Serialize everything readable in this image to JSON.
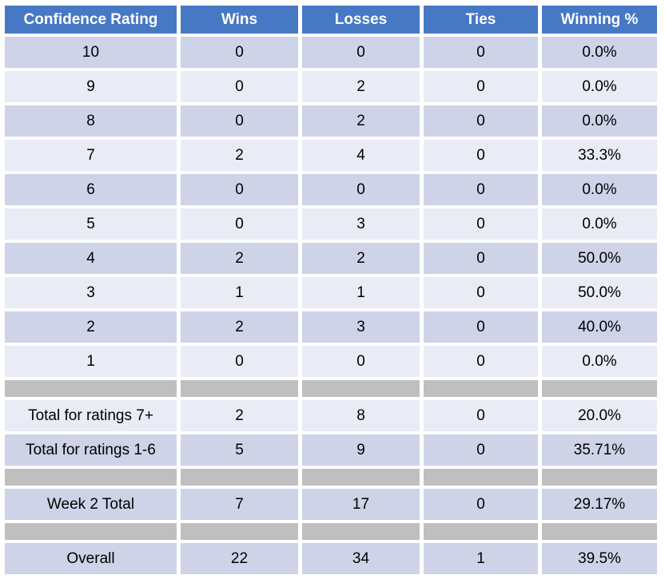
{
  "colors": {
    "header_bg": "#4778C4",
    "header_text": "#FFFFFF",
    "band_dark": "#CED3E8",
    "band_light": "#E9EBF5",
    "separator": "#BFBFBF",
    "body_text": "#000000",
    "page_bg": "#FFFFFF"
  },
  "chart_data": {
    "type": "table",
    "columns": [
      "Confidence Rating",
      "Wins",
      "Losses",
      "Ties",
      "Winning %"
    ],
    "rows": [
      {
        "band": "dark",
        "cells": [
          "10",
          "0",
          "0",
          "0",
          "0.0%"
        ]
      },
      {
        "band": "light",
        "cells": [
          "9",
          "0",
          "2",
          "0",
          "0.0%"
        ]
      },
      {
        "band": "dark",
        "cells": [
          "8",
          "0",
          "2",
          "0",
          "0.0%"
        ]
      },
      {
        "band": "light",
        "cells": [
          "7",
          "2",
          "4",
          "0",
          "33.3%"
        ]
      },
      {
        "band": "dark",
        "cells": [
          "6",
          "0",
          "0",
          "0",
          "0.0%"
        ]
      },
      {
        "band": "light",
        "cells": [
          "5",
          "0",
          "3",
          "0",
          "0.0%"
        ]
      },
      {
        "band": "dark",
        "cells": [
          "4",
          "2",
          "2",
          "0",
          "50.0%"
        ]
      },
      {
        "band": "light",
        "cells": [
          "3",
          "1",
          "1",
          "0",
          "50.0%"
        ]
      },
      {
        "band": "dark",
        "cells": [
          "2",
          "2",
          "3",
          "0",
          "40.0%"
        ]
      },
      {
        "band": "light",
        "cells": [
          "1",
          "0",
          "0",
          "0",
          "0.0%"
        ]
      },
      {
        "separator": true
      },
      {
        "band": "light",
        "cells": [
          "Total for ratings 7+",
          "2",
          "8",
          "0",
          "20.0%"
        ]
      },
      {
        "band": "dark",
        "cells": [
          "Total for ratings 1-6",
          "5",
          "9",
          "0",
          "35.71%"
        ]
      },
      {
        "separator": true
      },
      {
        "band": "dark",
        "cells": [
          "Week 2 Total",
          "7",
          "17",
          "0",
          "29.17%"
        ]
      },
      {
        "separator": true
      },
      {
        "band": "dark",
        "cells": [
          "Overall",
          "22",
          "34",
          "1",
          "39.5%"
        ]
      }
    ]
  }
}
